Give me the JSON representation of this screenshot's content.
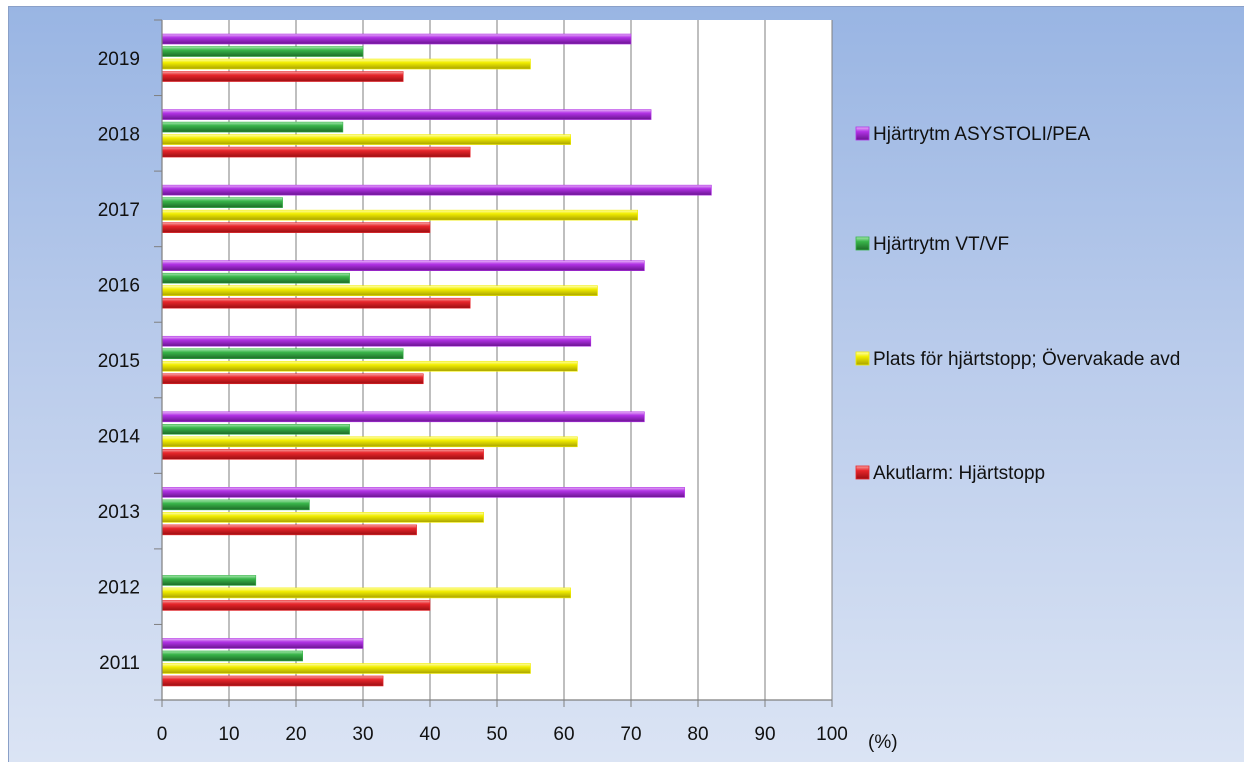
{
  "chart_data": {
    "type": "bar",
    "orientation": "horizontal",
    "categories": [
      "2011",
      "2012",
      "2013",
      "2014",
      "2015",
      "2016",
      "2017",
      "2018",
      "2019"
    ],
    "series": [
      {
        "name": "Akutlarm: Hjärtstopp",
        "color": "#e8262b",
        "values": [
          33,
          40,
          38,
          48,
          39,
          46,
          40,
          46,
          36
        ]
      },
      {
        "name": "Plats för hjärtstopp; Övervakade avd",
        "color": "#f2ee00",
        "values": [
          55,
          61,
          48,
          62,
          62,
          65,
          71,
          61,
          55
        ]
      },
      {
        "name": "Hjärtrytm  VT/VF",
        "color": "#39b54a",
        "values": [
          21,
          14,
          22,
          28,
          36,
          28,
          18,
          27,
          30
        ]
      },
      {
        "name": "Hjärtrytm  ASYSTOLI/PEA",
        "color": "#b233e6",
        "values": [
          30,
          null,
          78,
          72,
          64,
          72,
          82,
          73,
          70
        ]
      }
    ],
    "xlim": [
      0,
      100
    ],
    "xticks": [
      "0",
      "10",
      "20",
      "30",
      "40",
      "50",
      "60",
      "70",
      "80",
      "90",
      "100"
    ],
    "xlabel": "(%)",
    "grid": true,
    "legend_position": "right"
  }
}
